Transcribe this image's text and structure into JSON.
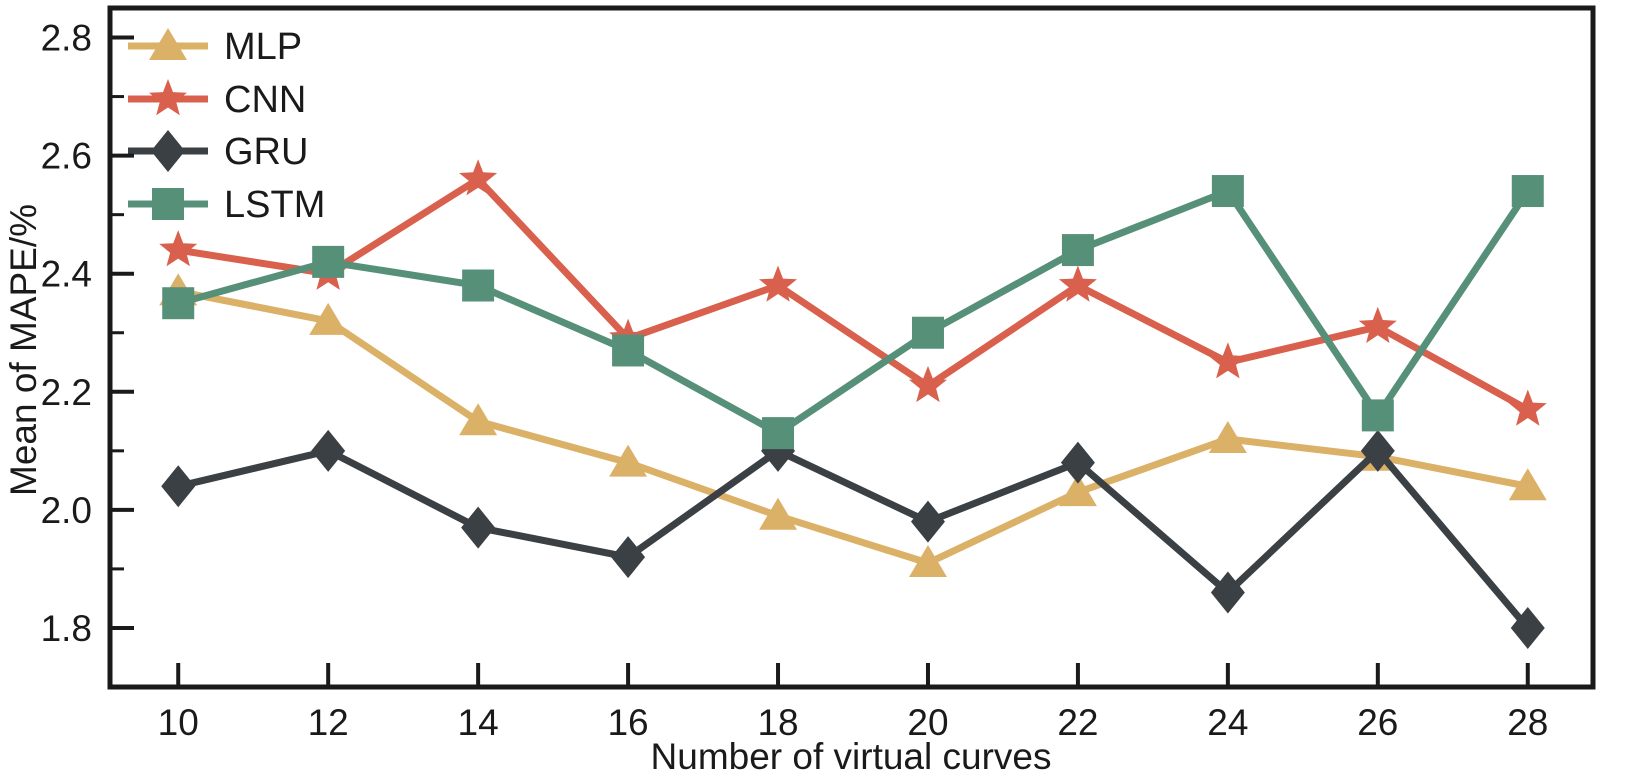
{
  "chart_data": {
    "type": "line",
    "title": "",
    "xlabel": "Number of virtual curves",
    "ylabel": "Mean of MAPE/%",
    "x": [
      10,
      12,
      14,
      16,
      18,
      20,
      22,
      24,
      26,
      28
    ],
    "xticks": [
      10,
      12,
      14,
      16,
      18,
      20,
      22,
      24,
      26,
      28
    ],
    "yticks": [
      1.8,
      2.0,
      2.2,
      2.4,
      2.6,
      2.8
    ],
    "yticks_minor": [
      1.9,
      2.1,
      2.3,
      2.5,
      2.7
    ],
    "xlim": [
      9.09,
      28.87
    ],
    "ylim": [
      1.7,
      2.85
    ],
    "grid": false,
    "legend_position": "upper-left",
    "axis_color": "#1a1a1a",
    "series": [
      {
        "name": "MLP",
        "color": "#DBB167",
        "marker": "triangle",
        "values": [
          2.37,
          2.32,
          2.15,
          2.08,
          1.99,
          1.91,
          2.03,
          2.12,
          2.09,
          2.04
        ]
      },
      {
        "name": "CNN",
        "color": "#D9604C",
        "marker": "star",
        "values": [
          2.44,
          2.4,
          2.56,
          2.29,
          2.38,
          2.21,
          2.38,
          2.25,
          2.31,
          2.17
        ]
      },
      {
        "name": "GRU",
        "color": "#3B4045",
        "marker": "diamond",
        "values": [
          2.04,
          2.1,
          1.97,
          1.92,
          2.1,
          1.98,
          2.08,
          1.86,
          2.1,
          1.8
        ]
      },
      {
        "name": "LSTM",
        "color": "#579079",
        "marker": "square",
        "values": [
          2.35,
          2.42,
          2.38,
          2.27,
          2.13,
          2.3,
          2.44,
          2.54,
          2.16,
          2.54
        ]
      }
    ]
  }
}
